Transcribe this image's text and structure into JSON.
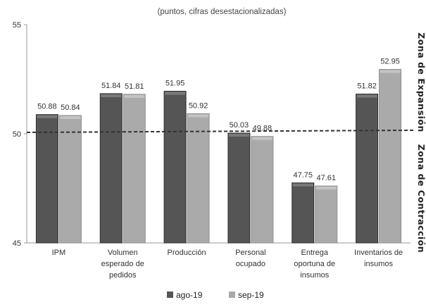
{
  "chart_data": {
    "type": "bar",
    "subtitle": "(puntos, cifras desestacionalizadas)",
    "categories": [
      [
        "IPM"
      ],
      [
        "Volumen",
        "esperado de",
        "pedidos"
      ],
      [
        "Producción"
      ],
      [
        "Personal",
        "ocupado"
      ],
      [
        "Entrega",
        "oportuna de",
        "insumos"
      ],
      [
        "Inventarios de",
        "insumos"
      ]
    ],
    "series": [
      {
        "name": "ago-19",
        "color": "#555555",
        "values": [
          50.88,
          51.84,
          51.95,
          50.03,
          47.75,
          51.82
        ]
      },
      {
        "name": "sep-19",
        "color": "#aaaaaa",
        "values": [
          50.84,
          51.81,
          50.92,
          49.88,
          47.61,
          52.95
        ]
      }
    ],
    "value_labels": [
      [
        "50.88",
        "51.84",
        "51.95",
        "50.03",
        "47.75",
        "51.82"
      ],
      [
        "50.84",
        "51.81",
        "50.92",
        "49.88",
        "47.61",
        "52.95"
      ]
    ],
    "ylim": [
      45,
      55
    ],
    "yticks": [
      "45",
      "50",
      "55"
    ],
    "threshold": 50,
    "right_labels": {
      "top": "Zona de Expansión",
      "bottom": "Zona de Contracción"
    },
    "legend_position": "bottom-center",
    "grid": false
  }
}
